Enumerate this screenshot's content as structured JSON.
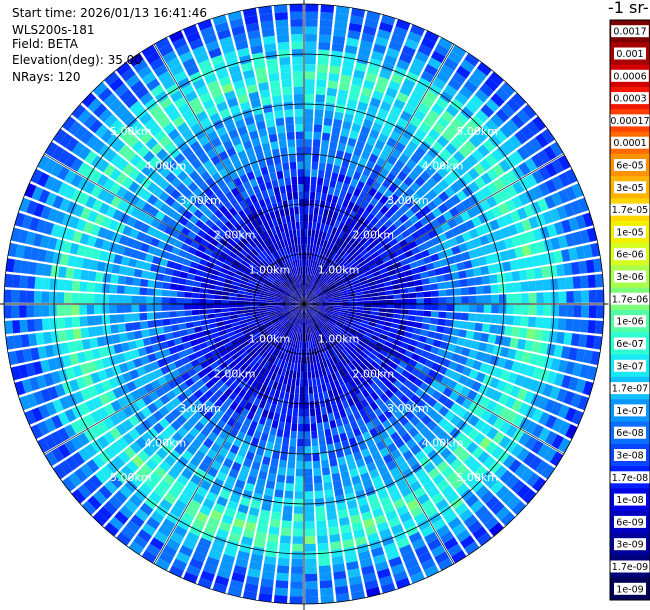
{
  "info": {
    "start_time": "Start time: 2026/01/13 16:41:46",
    "device": "WLS200s-181",
    "field": "Field: BETA",
    "elevation": "Elevation(deg): 35.00",
    "nrays": "NRays: 120"
  },
  "colorbar": {
    "title": "-1 sr-",
    "labels": [
      "0.0017",
      "0.001",
      "0.0006",
      "0.0003",
      "0.00017",
      "0.0001",
      "6e-05",
      "3e-05",
      "1.7e-05",
      "1e-05",
      "6e-06",
      "3e-06",
      "1.7e-06",
      "1e-06",
      "6e-07",
      "3e-07",
      "1.7e-07",
      "1e-07",
      "6e-08",
      "3e-08",
      "1.7e-08",
      "1e-08",
      "6e-09",
      "3e-09",
      "1.7e-09",
      "1e-09"
    ],
    "colors": [
      "#7a0000",
      "#a80000",
      "#d00000",
      "#f21500",
      "#ff4000",
      "#ff6a00",
      "#ff9200",
      "#ffb400",
      "#ffd600",
      "#f2f000",
      "#d6ff22",
      "#aaff4d",
      "#7dff7a",
      "#55ffa6",
      "#2effd2",
      "#1ae8f5",
      "#10c0ff",
      "#0a96ff",
      "#0a6eff",
      "#0846ff",
      "#0020ff",
      "#0000e6",
      "#0000c0",
      "#00009a",
      "#000078",
      "#000058"
    ]
  },
  "chart_data": {
    "type": "heatmap",
    "projection": "polar PPI",
    "field": "BETA",
    "elevation_deg": 35.0,
    "n_rays": 120,
    "range_rings_km": [
      1.0,
      2.0,
      3.0,
      4.0,
      5.0
    ],
    "ring_labels": [
      "1.00km",
      "2.00km",
      "3.00km",
      "4.00km",
      "5.00km"
    ],
    "max_range_km": 6.0,
    "color_scale": "log",
    "value_range": [
      1e-09,
      0.0017
    ],
    "radial_profile": [
      {
        "range_km": 0.0,
        "value": 3e-09
      },
      {
        "range_km": 1.0,
        "value": 6e-09
      },
      {
        "range_km": 2.0,
        "value": 1e-08
      },
      {
        "range_km": 3.0,
        "value": 6e-08
      },
      {
        "range_km": 4.0,
        "value": 1.7e-07
      },
      {
        "range_km": 4.6,
        "value": 6e-07
      },
      {
        "range_km": 5.0,
        "value": 3e-07
      },
      {
        "range_km": 5.5,
        "value": 6e-08
      },
      {
        "range_km": 6.0,
        "value": 3e-08
      }
    ],
    "grid": true
  }
}
